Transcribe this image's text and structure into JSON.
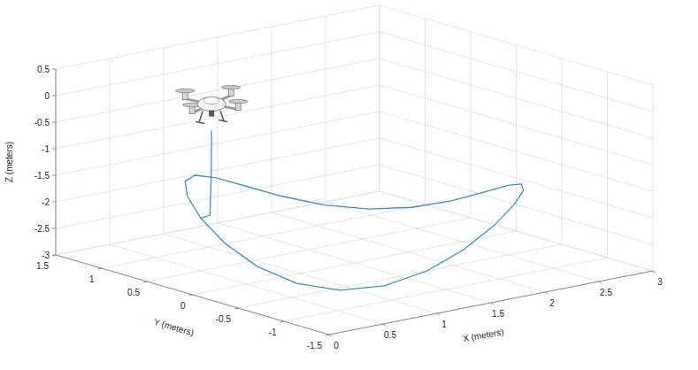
{
  "chart_data": {
    "type": "line3d",
    "x_label": "X (meters)",
    "y_label": "Y (meters)",
    "z_label": "Z (meters)",
    "xlim": [
      0,
      3
    ],
    "ylim": [
      -1.5,
      1.5
    ],
    "zlim": [
      -3,
      0.5
    ],
    "xticks": [
      0,
      0.5,
      1,
      1.5,
      2,
      2.5,
      3
    ],
    "yticks": [
      -1.5,
      -1,
      -0.5,
      0,
      0.5,
      1,
      1.5
    ],
    "zticks": [
      -3,
      -2.5,
      -2,
      -1.5,
      -1,
      -0.5,
      0,
      0.5
    ],
    "grid": true,
    "series": [
      {
        "color": "#3d8fc2",
        "x": [
          0.6,
          0.58,
          0.5,
          0.34,
          0.3,
          0.34,
          0.46,
          0.65,
          0.9,
          1.19,
          1.5,
          1.81,
          2.1,
          2.35,
          2.54,
          2.66,
          2.7,
          2.66,
          2.54,
          2.35,
          2.1,
          1.81,
          1.5,
          1.19,
          0.9,
          0.65,
          0.46,
          0.34
        ],
        "y": [
          0.5,
          0.48,
          0.4,
          0.31,
          0,
          -0.31,
          -0.6,
          -0.85,
          -1.04,
          -1.16,
          -1.2,
          -1.16,
          -1.04,
          -0.85,
          -0.6,
          -0.31,
          0,
          0.31,
          0.6,
          0.85,
          1.04,
          1.16,
          1.2,
          1.16,
          1.04,
          0.85,
          0.6,
          0.31
        ],
        "z": [
          -0.4,
          -1.2,
          -1.9,
          -1.85,
          -2.15,
          -2.45,
          -2.67,
          -2.75,
          -2.67,
          -2.45,
          -2.15,
          -1.85,
          -1.63,
          -1.55,
          -1.63,
          -1.85,
          -2.15,
          -2.45,
          -2.67,
          -2.75,
          -2.67,
          -2.45,
          -2.15,
          -1.85,
          -1.63,
          -1.55,
          -1.63,
          -1.85
        ]
      }
    ]
  }
}
